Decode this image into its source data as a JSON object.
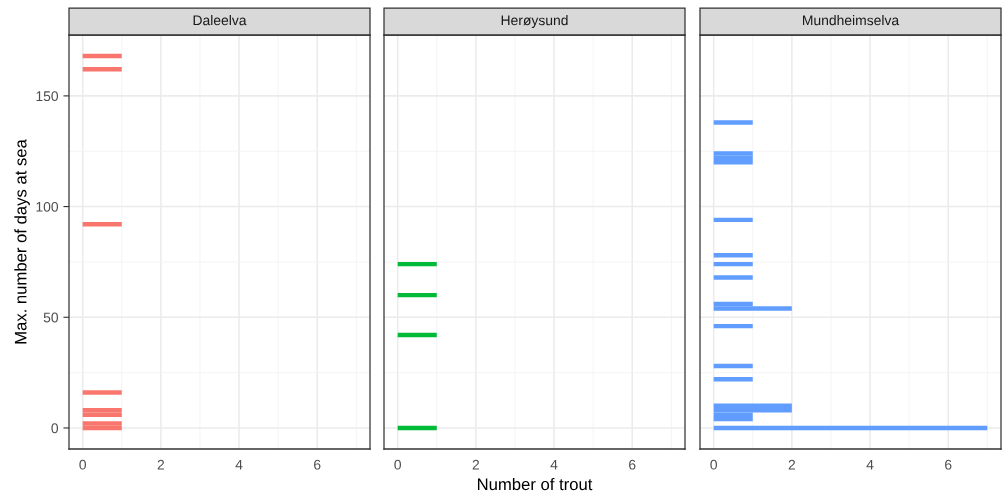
{
  "chart_data": [
    {
      "type": "histogram",
      "orientation": "horizontal",
      "title": "Daleelva",
      "ylabel": "Max. number of days at sea",
      "color": "#f8766d",
      "grid": true,
      "xlim": [
        -0.35,
        7.35
      ],
      "xticks": [
        0,
        2,
        4,
        6
      ],
      "ylim": [
        -9.5,
        177.5
      ],
      "yticks": [
        0,
        50,
        100,
        150
      ],
      "bins": [
        -1,
        1,
        3,
        5,
        7,
        9,
        11,
        13,
        15,
        17,
        19,
        21,
        23,
        25,
        27,
        29,
        31,
        33,
        35,
        37,
        39,
        41,
        43,
        45,
        47,
        49,
        51,
        53,
        55,
        57,
        59,
        61,
        63,
        65,
        67,
        69,
        71,
        73,
        75,
        77,
        79,
        81,
        83,
        85,
        87,
        89,
        91,
        93,
        95,
        97,
        99,
        101,
        103,
        105,
        107,
        109,
        111,
        113,
        115,
        117,
        119,
        121,
        123,
        125,
        127,
        129,
        131,
        133,
        135,
        137,
        139,
        141,
        143,
        145,
        147,
        149,
        151,
        153,
        155,
        157,
        159,
        161,
        163,
        165,
        167,
        169
      ],
      "values": [
        1,
        1,
        0,
        1,
        1,
        0,
        0,
        0,
        1,
        0,
        0,
        0,
        0,
        0,
        0,
        0,
        0,
        0,
        0,
        0,
        0,
        0,
        0,
        0,
        0,
        0,
        0,
        0,
        0,
        0,
        0,
        0,
        0,
        0,
        0,
        0,
        0,
        0,
        0,
        0,
        0,
        0,
        0,
        0,
        0,
        0,
        1,
        0,
        0,
        0,
        0,
        0,
        0,
        0,
        0,
        0,
        0,
        0,
        0,
        0,
        0,
        0,
        0,
        0,
        0,
        0,
        0,
        0,
        0,
        0,
        0,
        0,
        0,
        0,
        0,
        0,
        0,
        0,
        0,
        0,
        0,
        1,
        0,
        0,
        1
      ]
    },
    {
      "type": "histogram",
      "orientation": "horizontal",
      "title": "Herøysund",
      "xlabel": "Number of trout",
      "color": "#00ba38",
      "grid": true,
      "tick_labels": "x",
      "xlim": [
        -0.35,
        7.35
      ],
      "xticks": [
        0,
        2,
        4,
        6
      ],
      "ylim": [
        -9.5,
        177.5
      ],
      "yticks": [
        0,
        50,
        100,
        150
      ],
      "bins": [
        -1,
        1,
        3,
        5,
        7,
        9,
        11,
        13,
        15,
        17,
        19,
        21,
        23,
        25,
        27,
        29,
        31,
        33,
        35,
        37,
        39,
        41,
        43,
        45,
        47,
        49,
        51,
        53,
        55,
        57,
        59,
        61,
        63,
        65,
        67,
        69,
        71,
        73,
        75
      ],
      "values": [
        1,
        0,
        0,
        0,
        0,
        0,
        0,
        0,
        0,
        0,
        0,
        0,
        0,
        0,
        0,
        0,
        0,
        0,
        0,
        0,
        0,
        1,
        0,
        0,
        0,
        0,
        0,
        0,
        0,
        0,
        1,
        0,
        0,
        0,
        0,
        0,
        0,
        1
      ]
    },
    {
      "type": "histogram",
      "orientation": "horizontal",
      "title": "Mundheimselva",
      "color": "#619cff",
      "grid": true,
      "tick_labels": "x",
      "xlim": [
        -0.35,
        7.35
      ],
      "xticks": [
        0,
        2,
        4,
        6
      ],
      "ylim": [
        -9.5,
        177.5
      ],
      "yticks": [
        0,
        50,
        100,
        150
      ],
      "bins": [
        -1,
        1,
        3,
        5,
        7,
        9,
        11,
        13,
        15,
        17,
        19,
        21,
        23,
        25,
        27,
        29,
        31,
        33,
        35,
        37,
        39,
        41,
        43,
        45,
        47,
        49,
        51,
        53,
        55,
        57,
        59,
        61,
        63,
        65,
        67,
        69,
        71,
        73,
        75,
        77,
        79,
        81,
        83,
        85,
        87,
        89,
        91,
        93,
        95,
        97,
        99,
        101,
        103,
        105,
        107,
        109,
        111,
        113,
        115,
        117,
        119,
        121,
        123,
        125,
        127,
        129,
        131,
        133,
        135,
        137,
        139
      ],
      "values": [
        7,
        0,
        1,
        1,
        2,
        2,
        0,
        0,
        0,
        0,
        0,
        1,
        0,
        0,
        1,
        0,
        0,
        0,
        0,
        0,
        0,
        0,
        0,
        1,
        0,
        0,
        0,
        2,
        1,
        0,
        0,
        0,
        0,
        0,
        1,
        0,
        0,
        1,
        0,
        1,
        0,
        0,
        0,
        0,
        0,
        0,
        0,
        1,
        0,
        0,
        0,
        0,
        0,
        0,
        0,
        0,
        0,
        0,
        0,
        0,
        1,
        1,
        1,
        0,
        0,
        0,
        0,
        0,
        0,
        1
      ]
    }
  ]
}
